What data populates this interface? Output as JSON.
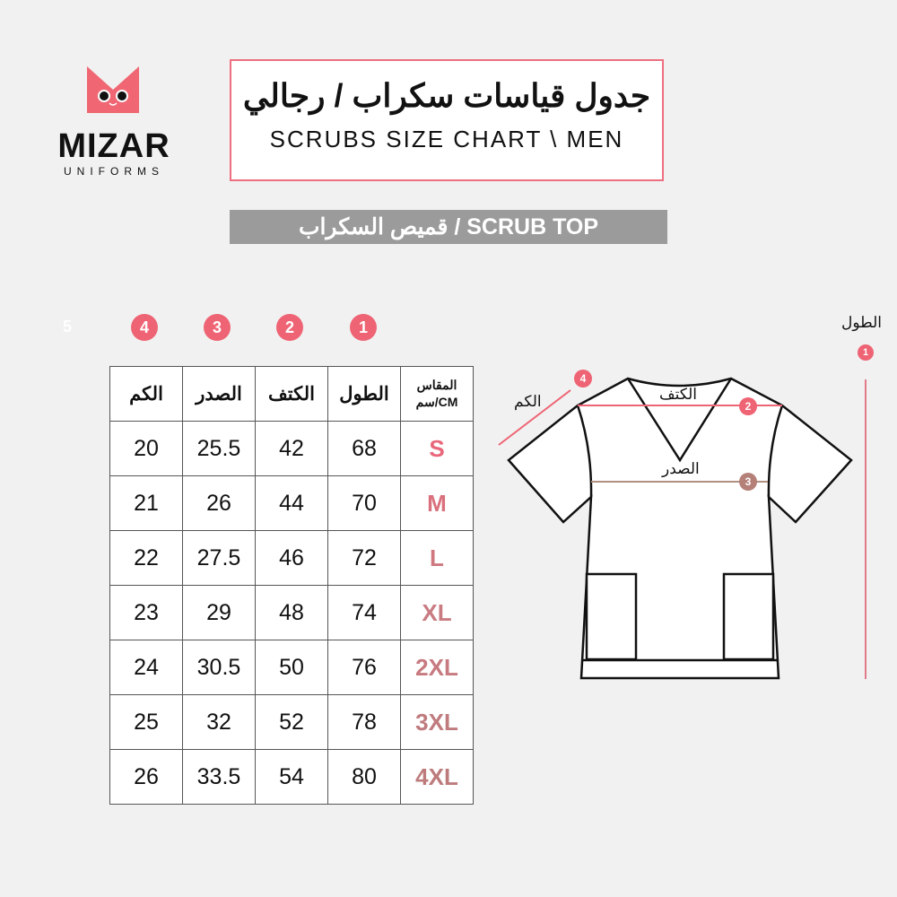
{
  "brand": {
    "name": "MIZAR",
    "sub": "UNIFORMS",
    "accent": "#ee6474"
  },
  "title": {
    "arabic": "جدول قياسات سكراب / رجالي",
    "english": "SCRUBS SIZE CHART \\ MEN"
  },
  "section": {
    "label": "قميص السكراب / SCRUB TOP"
  },
  "column_numbers": [
    "5",
    "4",
    "3",
    "2",
    "1"
  ],
  "table": {
    "headers": {
      "sleeve": "الكم",
      "chest": "الصدر",
      "shoulder": "الكتف",
      "length": "الطول",
      "size_ar": "المقاس",
      "size_unit": "CM/سم"
    },
    "rows": [
      {
        "size": "S",
        "length": "68",
        "shoulder": "42",
        "chest": "25.5",
        "sleeve": "20",
        "color": "#e8677a"
      },
      {
        "size": "M",
        "length": "70",
        "shoulder": "44",
        "chest": "26",
        "sleeve": "21",
        "color": "#d9707c"
      },
      {
        "size": "L",
        "length": "72",
        "shoulder": "46",
        "chest": "27.5",
        "sleeve": "22",
        "color": "#cf7880"
      },
      {
        "size": "XL",
        "length": "74",
        "shoulder": "48",
        "chest": "29",
        "sleeve": "23",
        "color": "#c97c82"
      },
      {
        "size": "2XL",
        "length": "76",
        "shoulder": "50",
        "chest": "30.5",
        "sleeve": "24",
        "color": "#c77a80"
      },
      {
        "size": "3XL",
        "length": "78",
        "shoulder": "52",
        "chest": "32",
        "sleeve": "25",
        "color": "#c07b7e"
      },
      {
        "size": "4XL",
        "length": "80",
        "shoulder": "54",
        "chest": "33.5",
        "sleeve": "26",
        "color": "#bd7b7c"
      }
    ]
  },
  "diagram": {
    "length_label": "الطول",
    "shoulder_label": "الكتف",
    "chest_label": "الصدر",
    "sleeve_label": "الكم",
    "markers": [
      "1",
      "2",
      "3",
      "4"
    ]
  }
}
